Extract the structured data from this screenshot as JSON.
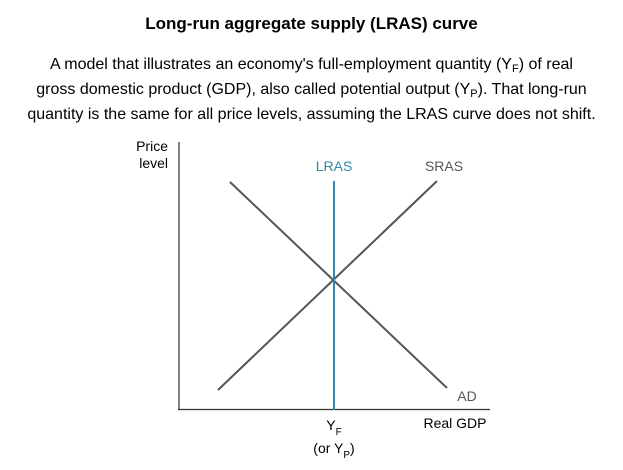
{
  "title": "Long-run aggregate supply (LRAS) curve",
  "description": {
    "line1": {
      "pre": "A model that illustrates an economy's full-employment quantity (Y",
      "sub": "F",
      "post": ") of real"
    },
    "line2": {
      "pre": "gross domestic product (GDP), also called potential output (Y",
      "sub": "P",
      "post": "). That long-run"
    },
    "line3": "quantity is the same for all price levels, assuming the LRAS curve does not shift."
  },
  "diagram": {
    "y_axis_label_line1": "Price",
    "y_axis_label_line2": "level",
    "x_axis_label": "Real GDP",
    "curves": {
      "lras": "LRAS",
      "sras": "SRAS",
      "ad": "AD"
    },
    "yf_label": {
      "base": "Y",
      "sub": "F"
    },
    "yp_label": {
      "pre": "(or Y",
      "sub": "P",
      "post": ")"
    },
    "colors": {
      "lras": "#2e8aa8",
      "curves": "#555555",
      "axes": "#333333",
      "label_gray": "#555555"
    }
  }
}
